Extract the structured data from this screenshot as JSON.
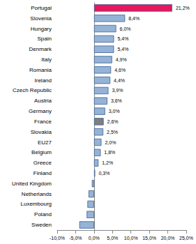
{
  "chart_data": {
    "type": "bar",
    "orientation": "horizontal",
    "categories": [
      "Portugal",
      "Slovenia",
      "Hungary",
      "Spain",
      "Denmark",
      "Italy",
      "Romania",
      "Ireland",
      "Czech Republic",
      "Austria",
      "Germany",
      "France",
      "Slovakia",
      "EU27",
      "Belgium",
      "Greece",
      "Finland",
      "United Kingdom",
      "Netherlands",
      "Luxembourg",
      "Poland",
      "Sweden"
    ],
    "values": [
      21.2,
      8.4,
      6.0,
      5.4,
      5.4,
      4.9,
      4.6,
      4.4,
      3.9,
      3.6,
      3.0,
      2.6,
      2.5,
      2.0,
      1.8,
      1.2,
      0.3,
      -0.6,
      -1.5,
      -1.8,
      -2.0,
      -4.0
    ],
    "value_labels": [
      "21,2%",
      "8,4%",
      "6,0%",
      "5,4%",
      "5,4%",
      "4,9%",
      "4,6%",
      "4,4%",
      "3,9%",
      "3,6%",
      "3,0%",
      "2,6%",
      "2,5%",
      "2,0%",
      "1,8%",
      "1,2%",
      "0,3%",
      null,
      null,
      null,
      null,
      null
    ],
    "colors": [
      "#e8175d",
      "#95b3d7",
      "#95b3d7",
      "#95b3d7",
      "#95b3d7",
      "#95b3d7",
      "#95b3d7",
      "#95b3d7",
      "#95b3d7",
      "#95b3d7",
      "#95b3d7",
      "#7f7f7f",
      "#95b3d7",
      "#95b3d7",
      "#95b3d7",
      "#95b3d7",
      "#95b3d7",
      "#95b3d7",
      "#95b3d7",
      "#95b3d7",
      "#95b3d7",
      "#95b3d7"
    ],
    "xlim": [
      -10,
      25
    ],
    "xticks": [
      {
        "value": -10,
        "label": "-10,0%"
      },
      {
        "value": -5,
        "label": "-5,0%"
      },
      {
        "value": 0,
        "label": "0,0%"
      },
      {
        "value": 5,
        "label": "5,0%"
      },
      {
        "value": 10,
        "label": "10,0%"
      },
      {
        "value": 15,
        "label": "15,0%"
      },
      {
        "value": 20,
        "label": "20,0%"
      },
      {
        "value": 25,
        "label": "25,0%"
      }
    ],
    "data_labels": true,
    "grid": false
  }
}
